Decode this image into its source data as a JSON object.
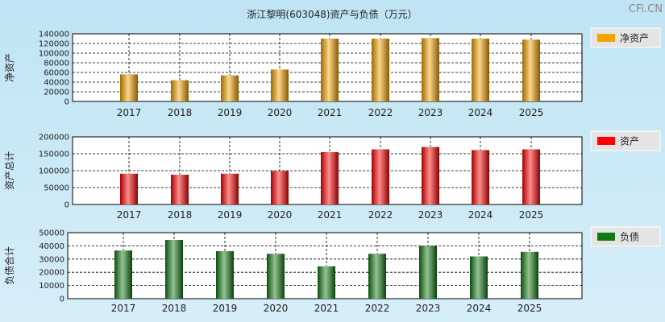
{
  "chart_data": {
    "type": "bar",
    "title": "浙江黎明(603048)资产与负债（万元）",
    "watermark": "CFi.CN",
    "categories": [
      "2017",
      "2018",
      "2019",
      "2020",
      "2021",
      "2022",
      "2023",
      "2024",
      "2025"
    ],
    "panels": [
      {
        "id": "equity",
        "ylabel": "净资产",
        "legend": "净资产",
        "color": "#f5a400",
        "ylim": [
          0,
          140000
        ],
        "yticks": [
          "0",
          "20000",
          "40000",
          "60000",
          "80000",
          "100000",
          "120000",
          "140000"
        ],
        "values": [
          56000,
          44000,
          54000,
          66000,
          130000,
          130000,
          131000,
          130000,
          128000
        ]
      },
      {
        "id": "assets",
        "ylabel": "资产总计",
        "legend": "资产",
        "color": "#ff0000",
        "ylim": [
          0,
          200000
        ],
        "yticks": [
          "0",
          "50000",
          "100000",
          "150000",
          "200000"
        ],
        "values": [
          91000,
          88000,
          91000,
          99000,
          155000,
          163000,
          170000,
          161000,
          163000
        ]
      },
      {
        "id": "liabilities",
        "ylabel": "负债合计",
        "legend": "负债",
        "color": "#117a11",
        "ylim": [
          0,
          50000
        ],
        "yticks": [
          "0",
          "10000",
          "20000",
          "30000",
          "40000",
          "50000"
        ],
        "values": [
          36500,
          44500,
          36000,
          34000,
          24500,
          34000,
          40000,
          32000,
          35500
        ]
      }
    ]
  }
}
